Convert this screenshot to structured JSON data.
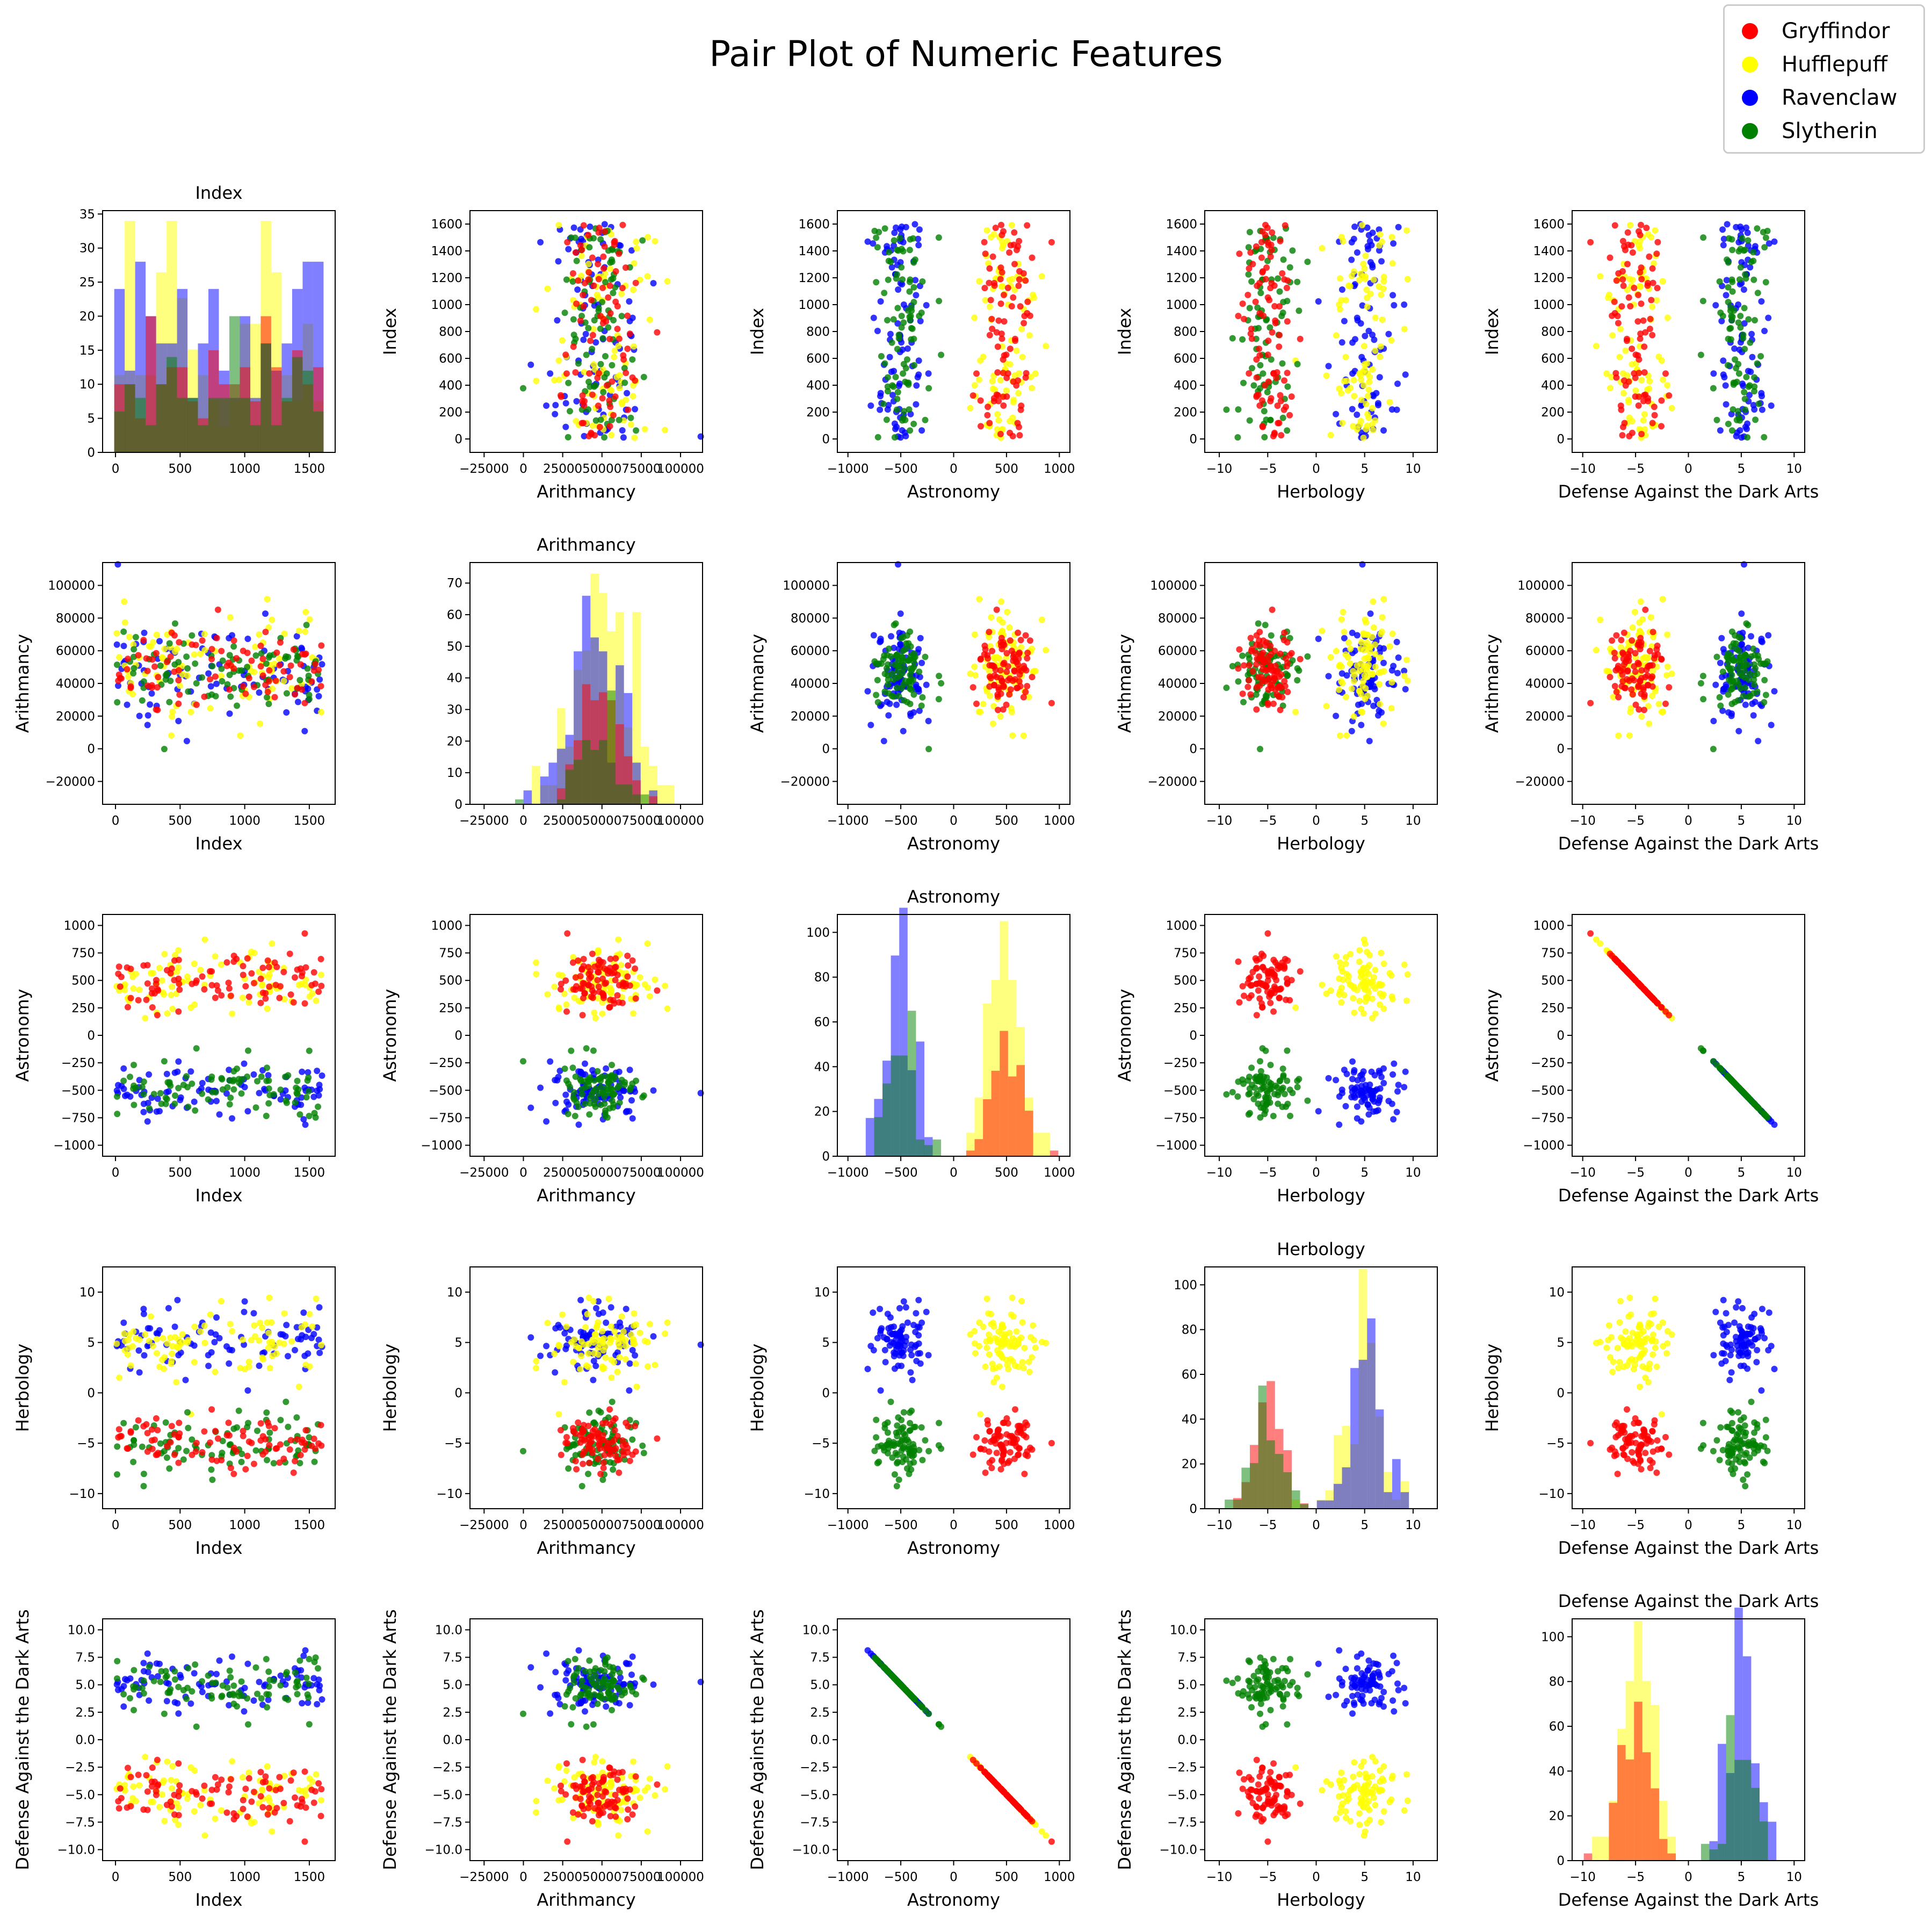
{
  "title": "Pair Plot of Numeric Features",
  "legend": [
    {
      "label": "Gryffindor",
      "color": "#ff0000"
    },
    {
      "label": "Hufflepuff",
      "color": "#ffff00"
    },
    {
      "label": "Ravenclaw",
      "color": "#0000ff"
    },
    {
      "label": "Slytherin",
      "color": "#008000"
    }
  ],
  "chart_data": {
    "type": "scatter",
    "subtype": "pair-plot",
    "title": "Pair Plot of Numeric Features",
    "features": [
      "Index",
      "Arithmancy",
      "Astronomy",
      "Herbology",
      "Defense Against the Dark Arts"
    ],
    "diagonal": "histogram",
    "houses": [
      "Gryffindor",
      "Hufflepuff",
      "Ravenclaw",
      "Slytherin"
    ],
    "house_colors": {
      "Gryffindor": "#ff0000",
      "Hufflepuff": "#ffff00",
      "Ravenclaw": "#0000ff",
      "Slytherin": "#008000"
    },
    "legend_position": "top-right",
    "grid": false,
    "axes": {
      "Index": {
        "range": [
          -100,
          1700
        ],
        "ticks": [
          0,
          500,
          1000,
          1500
        ],
        "ticks_as_y": [
          0,
          200,
          400,
          600,
          800,
          1000,
          1200,
          1400,
          1600
        ]
      },
      "Arithmancy": {
        "range": [
          -34000,
          114000
        ],
        "ticks": [
          -25000,
          0,
          25000,
          50000,
          75000,
          100000
        ],
        "tick_labels": [
          "−25000",
          "0",
          "25000",
          "50000",
          "75000",
          "100000"
        ],
        "ticks_as_y": [
          -20000,
          0,
          20000,
          40000,
          60000,
          80000,
          100000
        ]
      },
      "Astronomy": {
        "range": [
          -1100,
          1100
        ],
        "ticks": [
          -1000,
          -500,
          0,
          500,
          1000
        ],
        "tick_labels": [
          "−1000",
          "−500",
          "0",
          "500",
          "1000"
        ],
        "ticks_as_y": [
          -1000,
          -750,
          -500,
          -250,
          0,
          250,
          500,
          750,
          1000
        ],
        "tick_labels_y": [
          "−1000",
          "−750",
          "−500",
          "−250",
          "0",
          "250",
          "500",
          "750",
          "1000"
        ]
      },
      "Herbology": {
        "range": [
          -11.5,
          12.5
        ],
        "ticks": [
          -10,
          -5,
          0,
          5,
          10
        ],
        "tick_labels": [
          "−10",
          "−5",
          "0",
          "5",
          "10"
        ],
        "ticks_as_y": [
          -10,
          -5,
          0,
          5,
          10
        ],
        "tick_labels_y": [
          "−10",
          "−5",
          "0",
          "5",
          "10"
        ]
      },
      "Defense Against the Dark Arts": {
        "range": [
          -11,
          11
        ],
        "ticks": [
          -10,
          -5,
          0,
          5,
          10
        ],
        "tick_labels": [
          "−10",
          "−5",
          "0",
          "5",
          "10"
        ],
        "ticks_as_y": [
          -10,
          -7.5,
          -5,
          -2.5,
          0,
          2.5,
          5,
          7.5,
          10
        ],
        "tick_labels_y": [
          "−10.0",
          "−7.5",
          "−5.0",
          "−2.5",
          "0.0",
          "2.5",
          "5.0",
          "7.5",
          "10.0"
        ]
      }
    },
    "clusters": {
      "Gryffindor": {
        "Arithmancy": [
          49000,
          13000
        ],
        "Astronomy": [
          510,
          140
        ],
        "Herbology": [
          -5.0,
          1.4
        ],
        "Defense Against the Dark Arts": [
          -5.1,
          1.4
        ]
      },
      "Hufflepuff": {
        "Arithmancy": [
          50000,
          17000
        ],
        "Astronomy": [
          500,
          160
        ],
        "Herbology": [
          5.0,
          1.7
        ],
        "Defense Against the Dark Arts": [
          -5.0,
          1.6
        ]
      },
      "Ravenclaw": {
        "Arithmancy": [
          50000,
          18000
        ],
        "Astronomy": [
          -510,
          130
        ],
        "Herbology": [
          5.3,
          1.4
        ],
        "Defense Against the Dark Arts": [
          5.1,
          1.3
        ]
      },
      "Slytherin": {
        "Arithmancy": [
          50000,
          13000
        ],
        "Astronomy": [
          -500,
          120
        ],
        "Herbology": [
          -5.0,
          1.5
        ],
        "Defense Against the Dark Arts": [
          5.0,
          1.2
        ]
      }
    },
    "histograms": {
      "Index": {
        "bins": 20,
        "peak_counts": {
          "Hufflepuff": 34,
          "Ravenclaw": 28,
          "Gryffindor": 20,
          "Slytherin": 20
        }
      },
      "Arithmancy": {
        "bins": 25,
        "peak_counts": {
          "Hufflepuff": 73,
          "Ravenclaw": 66,
          "Gryffindor": 38,
          "Slytherin": 36
        }
      },
      "Astronomy": {
        "bins": 25,
        "peak_counts": {
          "Ravenclaw": 111,
          "Hufflepuff": 105,
          "Gryffindor": 56,
          "Slytherin": 65
        }
      },
      "Herbology": {
        "bins": 25,
        "peak_counts": {
          "Hufflepuff": 107,
          "Ravenclaw": 85,
          "Gryffindor": 57,
          "Slytherin": 55
        }
      },
      "Defense Against the Dark Arts": {
        "bins": 25,
        "peak_counts": {
          "Ravenclaw": 113,
          "Hufflepuff": 107,
          "Gryffindor": 71,
          "Slytherin": 65
        }
      }
    },
    "histogram_y_ticks": {
      "Index": [
        0,
        5,
        10,
        15,
        20,
        25,
        30,
        35
      ],
      "Arithmancy": [
        0,
        10,
        20,
        30,
        40,
        50,
        60,
        70
      ],
      "Astronomy": [
        0,
        20,
        40,
        60,
        80,
        100
      ],
      "Herbology": [
        0,
        20,
        40,
        60,
        80,
        100
      ],
      "Defense Against the Dark Arts": [
        0,
        20,
        40,
        60,
        80,
        100
      ]
    }
  }
}
